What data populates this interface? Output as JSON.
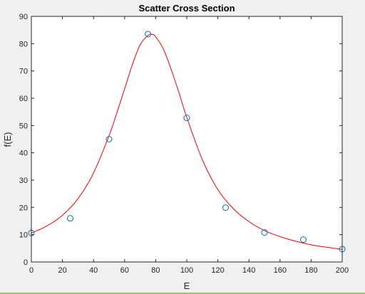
{
  "chart_data": {
    "type": "scatter",
    "title": "Scatter Cross Section",
    "xlabel": "E",
    "ylabel": "f(E)",
    "xlim": [
      0,
      200
    ],
    "ylim": [
      0,
      90
    ],
    "xticks": [
      "0",
      "20",
      "40",
      "60",
      "80",
      "100",
      "120",
      "140",
      "160",
      "180",
      "200"
    ],
    "yticks": [
      "0",
      "10",
      "20",
      "30",
      "40",
      "50",
      "60",
      "70",
      "80",
      "90"
    ],
    "grid": false,
    "series": [
      {
        "kind": "markers",
        "marker": "circle",
        "color": "#0072bd",
        "x": [
          0,
          25,
          50,
          75,
          100,
          125,
          150,
          175,
          200
        ],
        "y": [
          10.6,
          16.0,
          45.0,
          83.5,
          52.8,
          19.9,
          10.8,
          8.2,
          4.7
        ]
      },
      {
        "kind": "fit-curve",
        "color": "#ff0000",
        "x": [
          0,
          10,
          20,
          30,
          40,
          50,
          55,
          60,
          65,
          70,
          75,
          78,
          80,
          85,
          90,
          95,
          100,
          110,
          120,
          130,
          140,
          150,
          160,
          170,
          180,
          190,
          200
        ],
        "y": [
          10.6,
          13.2,
          17.1,
          23.2,
          32.6,
          46.3,
          54.6,
          63.4,
          72.3,
          79.6,
          83.0,
          83.4,
          82.5,
          78.0,
          70.5,
          62.0,
          53.0,
          37.5,
          26.5,
          19.5,
          14.8,
          11.5,
          9.3,
          7.6,
          6.3,
          5.4,
          4.6
        ]
      }
    ]
  }
}
